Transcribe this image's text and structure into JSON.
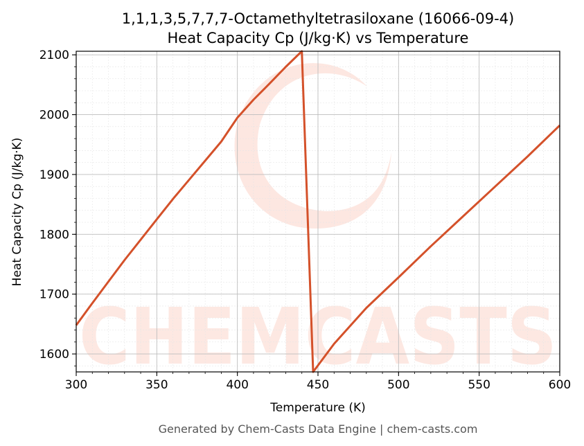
{
  "chart_data": {
    "type": "line",
    "title_lines": [
      "1,1,1,3,5,7,7,7-Octamethyltetrasiloxane (16066-09-4)",
      "Heat Capacity Cp (J/kg·K) vs Temperature"
    ],
    "xlabel": "Temperature (K)",
    "ylabel": "Heat Capacity Cp (J/kg·K)",
    "xlim": [
      300,
      600
    ],
    "ylim": [
      1570,
      2106
    ],
    "xticks": [
      300,
      350,
      400,
      450,
      500,
      550,
      600
    ],
    "yticks": [
      1600,
      1700,
      1800,
      1900,
      2000,
      2100
    ],
    "grid": true,
    "series": [
      {
        "color": "#d4512a",
        "points": [
          [
            300,
            1648
          ],
          [
            310,
            1685
          ],
          [
            320,
            1721
          ],
          [
            330,
            1757
          ],
          [
            340,
            1791
          ],
          [
            350,
            1825
          ],
          [
            360,
            1859
          ],
          [
            370,
            1891
          ],
          [
            380,
            1923
          ],
          [
            390,
            1955
          ],
          [
            400,
            1995
          ],
          [
            410,
            2025
          ],
          [
            420,
            2052
          ],
          [
            430,
            2080
          ],
          [
            440,
            2106
          ],
          [
            447,
            1570
          ],
          [
            460,
            1617
          ],
          [
            480,
            1677
          ],
          [
            500,
            1728
          ],
          [
            520,
            1780
          ],
          [
            540,
            1830
          ],
          [
            560,
            1880
          ],
          [
            580,
            1930
          ],
          [
            600,
            1982
          ]
        ]
      }
    ]
  },
  "watermark": {
    "text": "CHEMCASTS",
    "color": "#fde3dc"
  },
  "footer": "Generated by Chem-Casts Data Engine | chem-casts.com"
}
